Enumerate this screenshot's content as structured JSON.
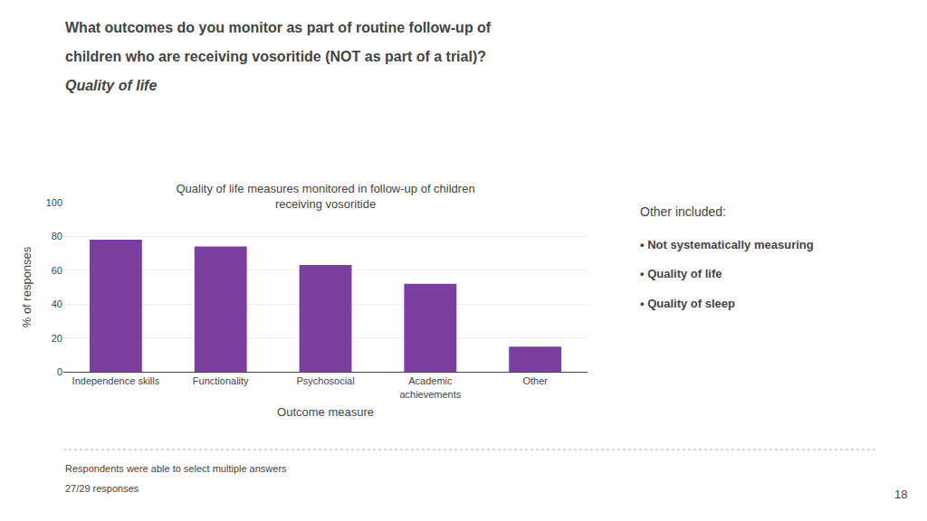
{
  "chart_data": {
    "type": "bar",
    "title": "Quality of life measures monitored in follow-up of children\nreceiving vosoritide",
    "xlabel": "Outcome measure",
    "ylabel": "% of responses",
    "categories": [
      "Independence skills",
      "Functionality",
      "Psychosocial",
      "Academic\nachievements",
      "Other"
    ],
    "values": [
      78,
      74,
      63,
      52,
      15
    ],
    "color": "#7B3FA0",
    "ylim": [
      0,
      100
    ],
    "yticks": [
      0,
      20,
      40,
      60,
      80,
      100
    ],
    "grid": true,
    "annotations": [
      "What outcomes do you monitor as part of routine follow-up of",
      "children who are receiving vosoritide (NOT as part of a trial)?",
      "Quality of life",
      "Other included:",
      "• Not systematically measuring",
      "• Quality of life",
      "• Quality of sleep",
      "Respondents were able to select multiple answers",
      "27/29 responses",
      "18"
    ]
  }
}
